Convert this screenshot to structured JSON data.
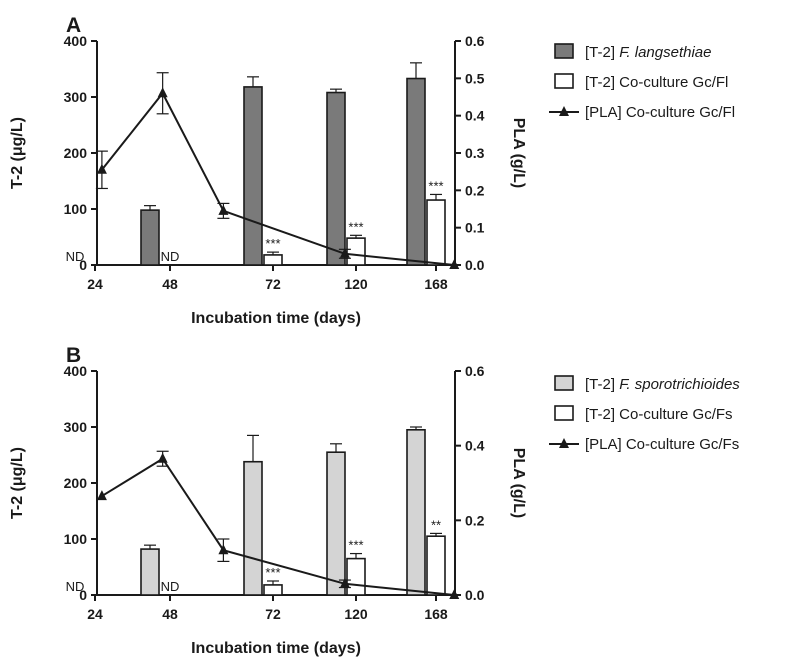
{
  "chart_data": [
    {
      "type": "bar+line",
      "panel_label": "A",
      "xlabel": "Incubation time (days)",
      "ylabel_left": "T-2 (μg/L)",
      "ylabel_right": "PLA (g/L)",
      "ylim_left": [
        0,
        400
      ],
      "ylim_right": [
        0,
        0.6
      ],
      "left_ticks": [
        "0",
        "100",
        "200",
        "300",
        "400"
      ],
      "right_ticks": [
        "0.0",
        "0.1",
        "0.2",
        "0.3",
        "0.4",
        "0.5",
        "0.6"
      ],
      "categories": [
        "24",
        "48",
        "72",
        "120",
        "168"
      ],
      "legend_position": "right",
      "series": [
        {
          "name": "[T-2] F. langsethiae",
          "legend_prefix": "[T-2] ",
          "legend_italic": "F. langsethiae",
          "legend_suffix": "",
          "kind": "bar",
          "fill": "#7a7a7a",
          "values": [
            null,
            98,
            318,
            308,
            333
          ],
          "errors": [
            null,
            8,
            18,
            6,
            28
          ],
          "annotations": [
            "ND",
            "",
            "",
            "",
            ""
          ]
        },
        {
          "name": "[T-2] Co-culture Gc/Fl",
          "legend_prefix": "[T-2] Co-culture Gc/Fl",
          "legend_italic": "",
          "legend_suffix": "",
          "kind": "bar",
          "fill": "#ffffff",
          "values": [
            null,
            null,
            18,
            48,
            116
          ],
          "errors": [
            null,
            null,
            5,
            5,
            10
          ],
          "annotations": [
            "",
            "ND",
            "***",
            "***",
            "***"
          ]
        },
        {
          "name": "[PLA] Co-culture Gc/Fl",
          "legend_prefix": "[PLA] Co-culture Gc/Fl",
          "legend_italic": "",
          "legend_suffix": "",
          "kind": "line",
          "axis": "right",
          "x": [
            30,
            55,
            80,
            130,
            175
          ],
          "values": [
            0.255,
            0.46,
            0.145,
            0.03,
            0.0
          ],
          "errors": [
            0.05,
            0.055,
            0.02,
            0.012,
            0.0
          ]
        }
      ]
    },
    {
      "type": "bar+line",
      "panel_label": "B",
      "xlabel": "Incubation time (days)",
      "ylabel_left": "T-2 (μg/L)",
      "ylabel_right": "PLA (g/L)",
      "ylim_left": [
        0,
        400
      ],
      "ylim_right": [
        0,
        0.6
      ],
      "left_ticks": [
        "0",
        "100",
        "200",
        "300",
        "400"
      ],
      "right_ticks": [
        "0.0",
        "0.2",
        "0.4",
        "0.6"
      ],
      "categories": [
        "24",
        "48",
        "72",
        "120",
        "168"
      ],
      "legend_position": "right",
      "series": [
        {
          "name": "[T-2] F. sporotrichioides",
          "legend_prefix": "[T-2] ",
          "legend_italic": "F. sporotrichioides",
          "legend_suffix": "",
          "kind": "bar",
          "fill": "#d4d4d4",
          "values": [
            null,
            82,
            238,
            255,
            295
          ],
          "errors": [
            null,
            7,
            47,
            15,
            5
          ],
          "annotations": [
            "ND",
            "",
            "",
            "",
            ""
          ]
        },
        {
          "name": "[T-2] Co-culture Gc/Fs",
          "legend_prefix": "[T-2] Co-culture Gc/Fs",
          "legend_italic": "",
          "legend_suffix": "",
          "kind": "bar",
          "fill": "#ffffff",
          "values": [
            null,
            null,
            18,
            65,
            105
          ],
          "errors": [
            null,
            null,
            7,
            9,
            5
          ],
          "annotations": [
            "",
            "ND",
            "***",
            "***",
            "**"
          ]
        },
        {
          "name": "[PLA] Co-culture Gc/Fs",
          "legend_prefix": "[PLA] Co-culture Gc/Fs",
          "legend_italic": "",
          "legend_suffix": "",
          "kind": "line",
          "axis": "right",
          "x": [
            30,
            55,
            80,
            130,
            175
          ],
          "values": [
            0.265,
            0.365,
            0.12,
            0.03,
            0.0
          ],
          "errors": [
            0.0,
            0.02,
            0.03,
            0.01,
            0.0
          ]
        }
      ]
    }
  ]
}
